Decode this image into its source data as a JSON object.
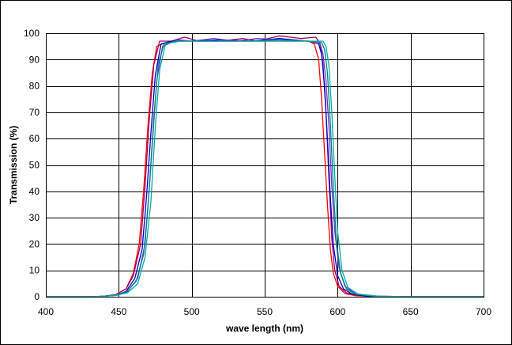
{
  "chart_data": {
    "type": "line",
    "title": "",
    "xlabel": "wave length (nm)",
    "ylabel": "Transmission (%)",
    "xlim": [
      400,
      700
    ],
    "ylim": [
      0,
      100
    ],
    "x_ticks": [
      400,
      450,
      500,
      550,
      600,
      650,
      700
    ],
    "y_ticks": [
      0,
      10,
      20,
      30,
      40,
      50,
      60,
      70,
      80,
      90,
      100
    ],
    "grid": true,
    "legend": "none",
    "series": [
      {
        "color": "#ff0000",
        "points": [
          [
            400,
            0
          ],
          [
            430,
            0
          ],
          [
            440,
            0.2
          ],
          [
            448,
            0.8
          ],
          [
            455,
            3
          ],
          [
            460,
            9
          ],
          [
            464,
            20
          ],
          [
            467,
            40
          ],
          [
            470,
            65
          ],
          [
            473,
            85
          ],
          [
            476,
            95
          ],
          [
            480,
            96
          ],
          [
            490,
            97
          ],
          [
            500,
            97
          ],
          [
            520,
            97
          ],
          [
            540,
            97
          ],
          [
            560,
            97
          ],
          [
            580,
            97
          ],
          [
            584,
            96
          ],
          [
            587,
            90
          ],
          [
            589,
            75
          ],
          [
            591,
            55
          ],
          [
            593,
            35
          ],
          [
            595,
            18
          ],
          [
            597,
            9
          ],
          [
            600,
            4
          ],
          [
            605,
            1.2
          ],
          [
            612,
            0.4
          ],
          [
            630,
            0
          ],
          [
            700,
            0
          ]
        ]
      },
      {
        "color": "#a00060",
        "points": [
          [
            400,
            0
          ],
          [
            430,
            0
          ],
          [
            440,
            0.2
          ],
          [
            448,
            0.8
          ],
          [
            455,
            3
          ],
          [
            460,
            8
          ],
          [
            465,
            20
          ],
          [
            468,
            42
          ],
          [
            471,
            68
          ],
          [
            474,
            88
          ],
          [
            478,
            97
          ],
          [
            486,
            97
          ],
          [
            495,
            98.5
          ],
          [
            505,
            97
          ],
          [
            520,
            97
          ],
          [
            535,
            98
          ],
          [
            545,
            97
          ],
          [
            560,
            99
          ],
          [
            575,
            98
          ],
          [
            585,
            98.5
          ],
          [
            588,
            96
          ],
          [
            590,
            88
          ],
          [
            592,
            70
          ],
          [
            594,
            45
          ],
          [
            596,
            22
          ],
          [
            598,
            10
          ],
          [
            601,
            4
          ],
          [
            606,
            1.5
          ],
          [
            614,
            0.5
          ],
          [
            630,
            0
          ],
          [
            700,
            0
          ]
        ]
      },
      {
        "color": "#0000cc",
        "points": [
          [
            400,
            0
          ],
          [
            430,
            0
          ],
          [
            440,
            0.2
          ],
          [
            448,
            0.6
          ],
          [
            455,
            2
          ],
          [
            461,
            7
          ],
          [
            466,
            18
          ],
          [
            469,
            38
          ],
          [
            472,
            62
          ],
          [
            475,
            84
          ],
          [
            479,
            96
          ],
          [
            490,
            97.5
          ],
          [
            500,
            97
          ],
          [
            520,
            97.5
          ],
          [
            540,
            97
          ],
          [
            560,
            98
          ],
          [
            580,
            97
          ],
          [
            587,
            96
          ],
          [
            589,
            92
          ],
          [
            591,
            80
          ],
          [
            593,
            60
          ],
          [
            595,
            38
          ],
          [
            597,
            20
          ],
          [
            600,
            8
          ],
          [
            604,
            3
          ],
          [
            610,
            1
          ],
          [
            620,
            0.2
          ],
          [
            640,
            0
          ],
          [
            700,
            0
          ]
        ]
      },
      {
        "color": "#6633cc",
        "points": [
          [
            400,
            0
          ],
          [
            430,
            0
          ],
          [
            440,
            0.2
          ],
          [
            448,
            0.5
          ],
          [
            455,
            1.5
          ],
          [
            462,
            6
          ],
          [
            467,
            16
          ],
          [
            470,
            34
          ],
          [
            473,
            58
          ],
          [
            476,
            82
          ],
          [
            480,
            95
          ],
          [
            490,
            97.5
          ],
          [
            500,
            97
          ],
          [
            515,
            98
          ],
          [
            530,
            97
          ],
          [
            545,
            98
          ],
          [
            560,
            97.5
          ],
          [
            580,
            97
          ],
          [
            588,
            96
          ],
          [
            590,
            92
          ],
          [
            592,
            82
          ],
          [
            594,
            65
          ],
          [
            596,
            42
          ],
          [
            598,
            25
          ],
          [
            601,
            11
          ],
          [
            605,
            4
          ],
          [
            612,
            1.2
          ],
          [
            625,
            0.2
          ],
          [
            650,
            0
          ],
          [
            700,
            0
          ]
        ]
      },
      {
        "color": "#008080",
        "points": [
          [
            400,
            0
          ],
          [
            430,
            0
          ],
          [
            440,
            0.2
          ],
          [
            448,
            0.6
          ],
          [
            456,
            2
          ],
          [
            463,
            7
          ],
          [
            468,
            20
          ],
          [
            471,
            42
          ],
          [
            474,
            68
          ],
          [
            477,
            88
          ],
          [
            481,
            96
          ],
          [
            490,
            97
          ],
          [
            500,
            97
          ],
          [
            520,
            97
          ],
          [
            540,
            97
          ],
          [
            560,
            97.5
          ],
          [
            580,
            97
          ],
          [
            589,
            96.5
          ],
          [
            591,
            94
          ],
          [
            593,
            85
          ],
          [
            595,
            66
          ],
          [
            597,
            42
          ],
          [
            599,
            22
          ],
          [
            602,
            9
          ],
          [
            606,
            3
          ],
          [
            612,
            1
          ],
          [
            625,
            0.2
          ],
          [
            650,
            0
          ],
          [
            700,
            0
          ]
        ]
      },
      {
        "color": "#00aaaa",
        "points": [
          [
            400,
            0
          ],
          [
            430,
            0
          ],
          [
            440,
            0.2
          ],
          [
            448,
            0.5
          ],
          [
            456,
            1.5
          ],
          [
            463,
            5
          ],
          [
            468,
            15
          ],
          [
            472,
            36
          ],
          [
            475,
            64
          ],
          [
            478,
            86
          ],
          [
            482,
            96
          ],
          [
            492,
            97
          ],
          [
            500,
            97
          ],
          [
            520,
            97
          ],
          [
            540,
            97
          ],
          [
            560,
            97
          ],
          [
            580,
            97
          ],
          [
            590,
            97
          ],
          [
            592,
            95
          ],
          [
            594,
            88
          ],
          [
            596,
            70
          ],
          [
            598,
            46
          ],
          [
            600,
            25
          ],
          [
            603,
            10
          ],
          [
            607,
            3.5
          ],
          [
            614,
            1
          ],
          [
            628,
            0.2
          ],
          [
            650,
            0
          ],
          [
            700,
            0
          ]
        ]
      }
    ]
  }
}
